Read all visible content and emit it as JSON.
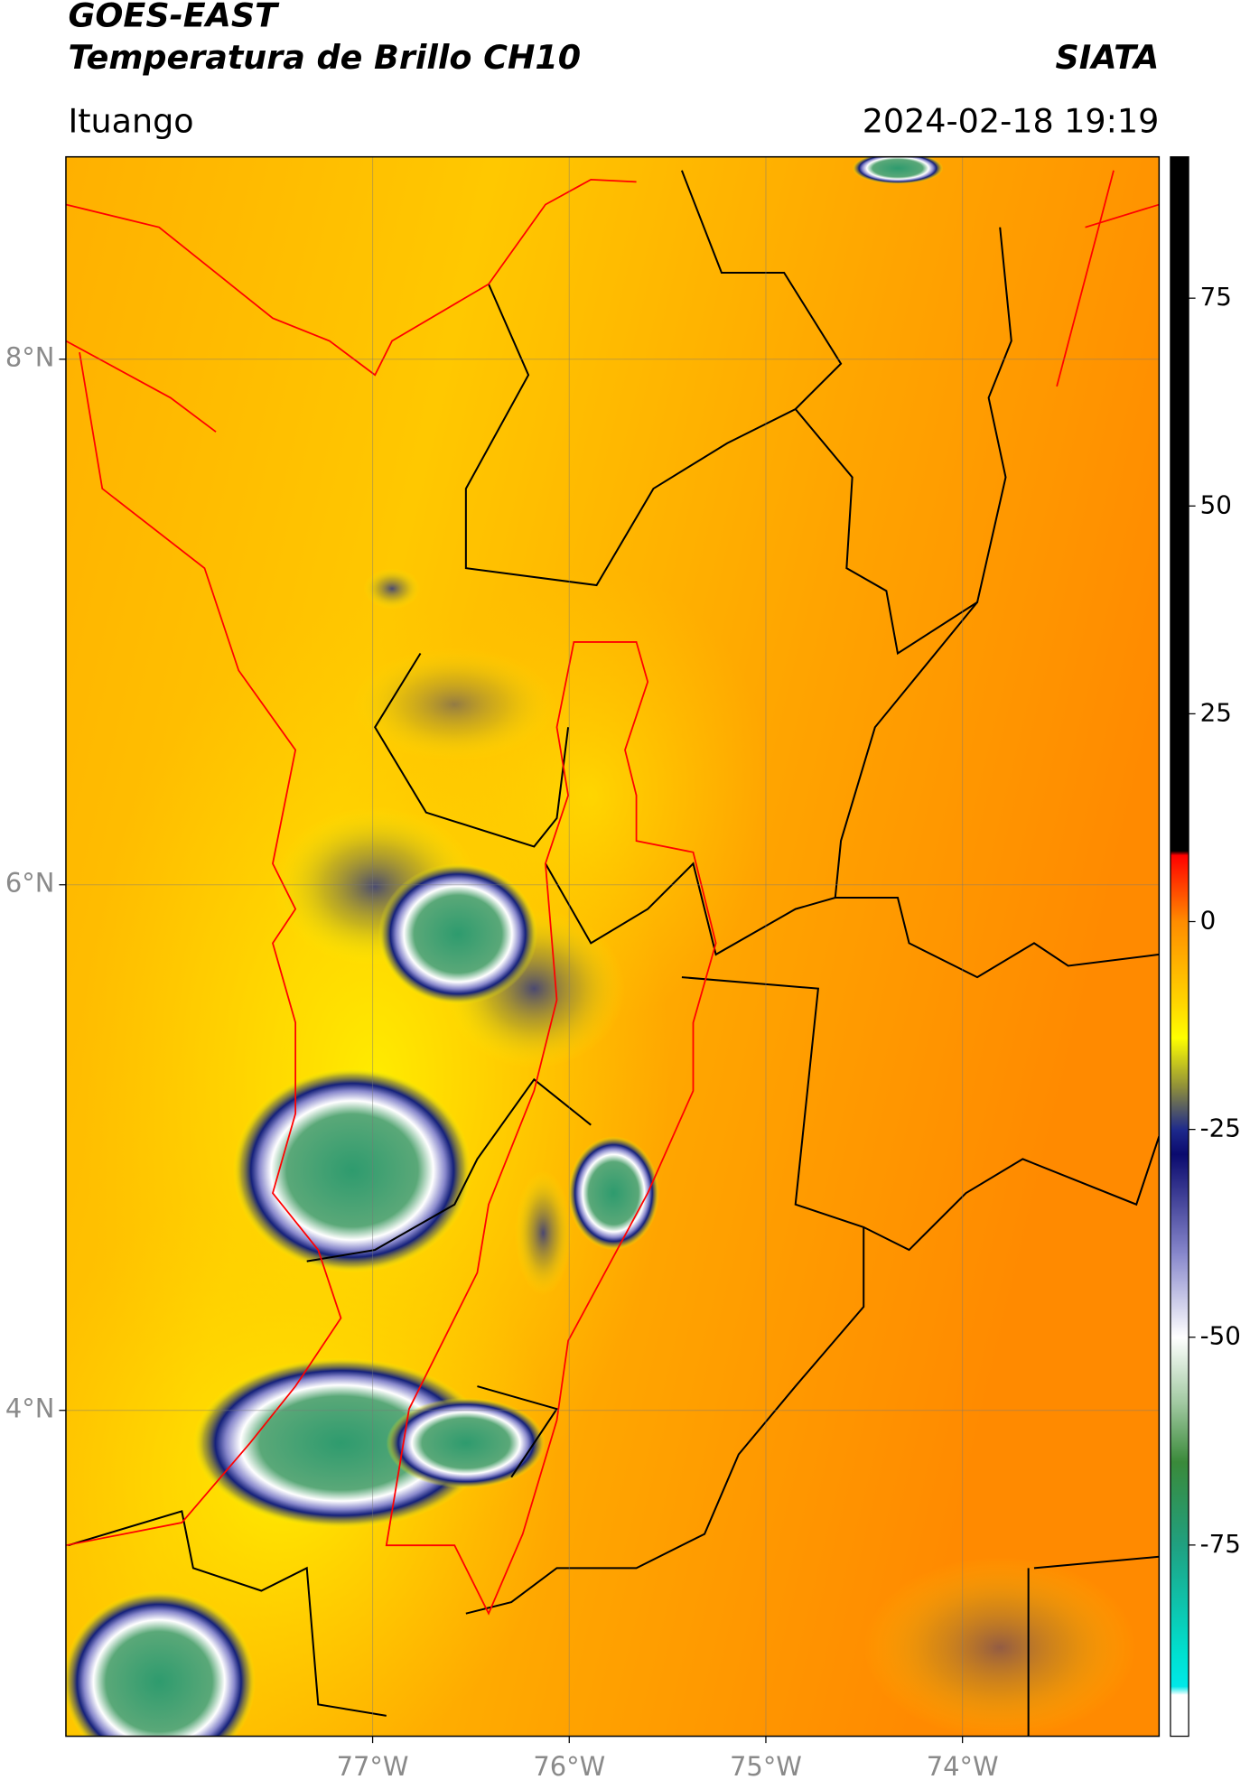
{
  "header": {
    "title": "GOES-EAST",
    "subtitle": "Temperatura de Brillo CH10",
    "brand": "SIATA",
    "location": "Ituango",
    "datetime": "2024-02-18 19:19"
  },
  "map": {
    "lonlim": [
      -78.56,
      -73.0
    ],
    "latlim": [
      2.76,
      8.77
    ],
    "grid": true,
    "lon_ticks": [
      {
        "value": -77,
        "label": "77°W"
      },
      {
        "value": -76,
        "label": "76°W"
      },
      {
        "value": -75,
        "label": "75°W"
      },
      {
        "value": -74,
        "label": "74°W"
      }
    ],
    "lat_ticks": [
      {
        "value": 8,
        "label": "8°N"
      },
      {
        "value": 6,
        "label": "6°N"
      },
      {
        "value": 4,
        "label": "4°N"
      }
    ]
  },
  "colorbar": {
    "lim": [
      -98,
      92
    ],
    "ticks": [
      75,
      50,
      25,
      0,
      -25,
      -50,
      -75
    ],
    "stops": [
      {
        "value": 92,
        "color": "#000000"
      },
      {
        "value": 8.5,
        "color": "#000000"
      },
      {
        "value": 8,
        "color": "#ff0000"
      },
      {
        "value": 0,
        "color": "#ff8c00"
      },
      {
        "value": -10,
        "color": "#ffd700"
      },
      {
        "value": -14,
        "color": "#ffff00"
      },
      {
        "value": -20,
        "color": "#8c8c3c"
      },
      {
        "value": -25,
        "color": "#1e2a8c"
      },
      {
        "value": -28,
        "color": "#0a0a6e"
      },
      {
        "value": -40,
        "color": "#8888cc"
      },
      {
        "value": -50,
        "color": "#ffffff"
      },
      {
        "value": -58,
        "color": "#a0c8a0"
      },
      {
        "value": -65,
        "color": "#3a8a3a"
      },
      {
        "value": -75,
        "color": "#20a080"
      },
      {
        "value": -88,
        "color": "#00e0d0"
      },
      {
        "value": -92,
        "color": "#00e8e8"
      },
      {
        "value": -93,
        "color": "#ffffff"
      },
      {
        "value": -98,
        "color": "#ffffff"
      }
    ]
  }
}
